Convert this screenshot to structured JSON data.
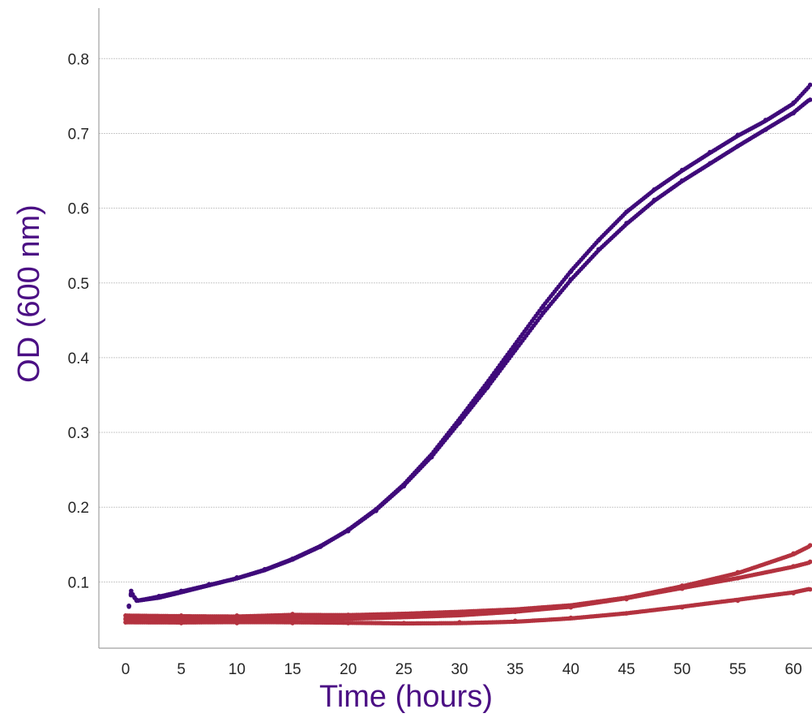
{
  "chart_data": {
    "type": "scatter",
    "title": "",
    "xlabel": "Time (hours)",
    "ylabel": "OD (600 nm)",
    "xlim": [
      -1,
      62
    ],
    "ylim": [
      0,
      0.85
    ],
    "x_ticks": [
      0,
      5,
      10,
      15,
      20,
      25,
      30,
      35,
      40,
      45,
      50,
      55,
      60
    ],
    "y_ticks": [
      0.1,
      0.2,
      0.3,
      0.4,
      0.5,
      0.6,
      0.7,
      0.8
    ],
    "x_tick_labels": [
      "0",
      "5",
      "10",
      "15",
      "20",
      "25",
      "30",
      "35",
      "40",
      "45",
      "50",
      "55",
      "60"
    ],
    "y_tick_labels": [
      "0.1",
      "0.2",
      "0.3",
      "0.4",
      "0.5",
      "0.6",
      "0.7",
      "0.8"
    ],
    "grid": "horizontal",
    "legend": "none",
    "colors": {
      "axis_title": "#4b0f84",
      "purple_series": "#3f0a7a",
      "red_series": "#b3323f",
      "grid": "#c8c8c8",
      "axis": "#a0a0a0"
    },
    "series": [
      {
        "color": "purple",
        "x": [
          0.3,
          0.5,
          1,
          3,
          5,
          7.5,
          10,
          12.5,
          15,
          17.5,
          20,
          22.5,
          25,
          27.5,
          30,
          32.5,
          35,
          37.5,
          40,
          42.5,
          45,
          47.5,
          50,
          52.5,
          55,
          57.5,
          60,
          61.5
        ],
        "y": [
          0.068,
          0.088,
          0.076,
          0.08,
          0.087,
          0.096,
          0.105,
          0.116,
          0.13,
          0.147,
          0.168,
          0.195,
          0.228,
          0.267,
          0.313,
          0.36,
          0.41,
          0.46,
          0.505,
          0.545,
          0.58,
          0.611,
          0.637,
          0.66,
          0.683,
          0.705,
          0.727,
          0.745
        ]
      },
      {
        "color": "purple",
        "x": [
          0.3,
          0.5,
          1,
          3,
          5,
          7.5,
          10,
          12.5,
          15,
          17.5,
          20,
          22.5,
          25,
          27.5,
          30,
          32.5,
          35,
          37.5,
          40,
          42.5,
          45,
          47.5,
          50,
          52.5,
          55,
          57.5,
          60,
          61.5
        ],
        "y": [
          0.068,
          0.085,
          0.075,
          0.081,
          0.088,
          0.097,
          0.106,
          0.117,
          0.131,
          0.148,
          0.17,
          0.197,
          0.23,
          0.27,
          0.317,
          0.366,
          0.417,
          0.468,
          0.515,
          0.557,
          0.595,
          0.625,
          0.651,
          0.675,
          0.698,
          0.718,
          0.741,
          0.765
        ]
      },
      {
        "color": "red",
        "x": [
          0,
          5,
          10,
          15,
          20,
          25,
          30,
          35,
          40,
          45,
          50,
          55,
          60,
          61.5
        ],
        "y": [
          0.055,
          0.055,
          0.055,
          0.057,
          0.056,
          0.057,
          0.059,
          0.062,
          0.068,
          0.079,
          0.095,
          0.113,
          0.138,
          0.149
        ]
      },
      {
        "color": "red",
        "x": [
          0,
          5,
          10,
          15,
          20,
          25,
          30,
          35,
          40,
          45,
          50,
          55,
          60,
          61.5
        ],
        "y": [
          0.05,
          0.05,
          0.051,
          0.052,
          0.052,
          0.054,
          0.056,
          0.06,
          0.066,
          0.077,
          0.091,
          0.105,
          0.121,
          0.127
        ]
      },
      {
        "color": "red",
        "x": [
          0,
          5,
          10,
          15,
          20,
          25,
          30,
          35,
          40,
          45,
          50,
          55,
          60,
          61.5
        ],
        "y": [
          0.046,
          0.045,
          0.045,
          0.045,
          0.045,
          0.045,
          0.046,
          0.048,
          0.052,
          0.058,
          0.066,
          0.075,
          0.085,
          0.09
        ]
      }
    ]
  }
}
